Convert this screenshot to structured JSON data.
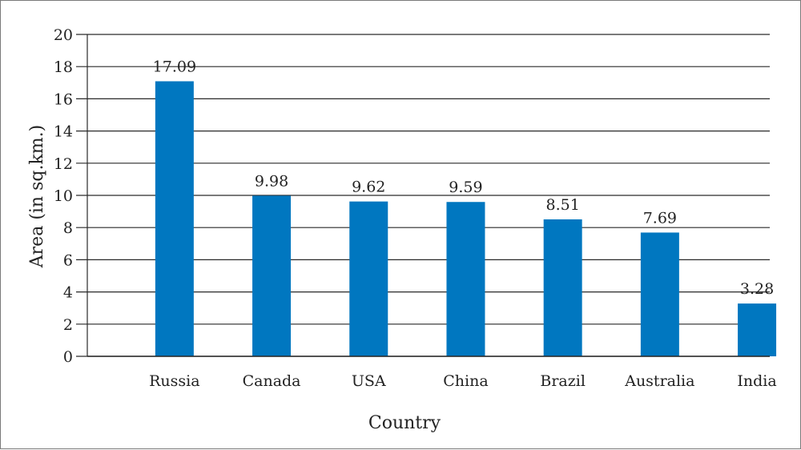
{
  "colors": {
    "bar": "#0077c0",
    "grid": "#2a2a2a",
    "text": "#222222"
  },
  "chart_data": {
    "type": "bar",
    "title": "",
    "xlabel": "Country",
    "ylabel": "Area (in sq.km.)",
    "categories": [
      "Russia",
      "Canada",
      "USA",
      "China",
      "Brazil",
      "Australia",
      "India"
    ],
    "values": [
      17.09,
      9.98,
      9.62,
      9.59,
      8.51,
      7.69,
      3.28
    ],
    "value_labels": [
      "17.09",
      "9.98",
      "9.62",
      "9.59",
      "8.51",
      "7.69",
      "3.28"
    ],
    "ylim": [
      0,
      20
    ],
    "yticks": [
      0,
      2,
      4,
      6,
      8,
      10,
      12,
      14,
      16,
      18,
      20
    ],
    "grid": true,
    "legend": "none"
  }
}
